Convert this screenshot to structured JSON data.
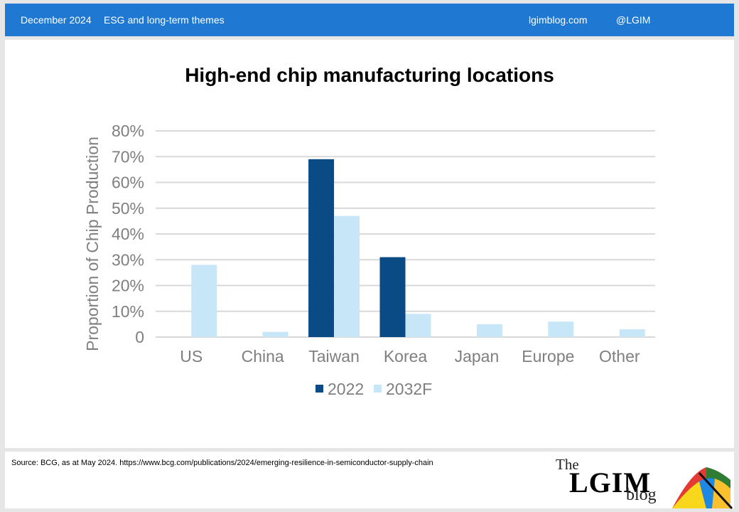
{
  "header": {
    "date": "December 2024",
    "theme": "ESG and long-term themes",
    "site": "lgimblog.com",
    "handle": "@LGIM"
  },
  "footer": {
    "source": "Source: BCG, as at May 2024. https://www.bcg.com/publications/2024/emerging-resilience-in-semiconductor-supply-chain",
    "logo_the": "The",
    "logo_name": "LGIM",
    "logo_blog": "blog"
  },
  "colors": {
    "header_bg": "#1f78d1",
    "series_2022": "#0a4b85",
    "series_2032F": "#c7e6f7",
    "gridline": "#d9d9d9",
    "axis_text": "#7f7f7f"
  },
  "chart_data": {
    "type": "bar",
    "title": "High-end chip manufacturing locations",
    "ylabel": "Proportion of Chip Production",
    "xlabel": "",
    "categories": [
      "US",
      "China",
      "Taiwan",
      "Korea",
      "Japan",
      "Europe",
      "Other"
    ],
    "series": [
      {
        "name": "2022",
        "values": [
          0,
          0,
          69,
          31,
          0,
          0,
          0
        ]
      },
      {
        "name": "2032F",
        "values": [
          28,
          2,
          47,
          9,
          5,
          6,
          3
        ]
      }
    ],
    "yticks": [
      "0",
      "10%",
      "20%",
      "30%",
      "40%",
      "50%",
      "60%",
      "70%",
      "80%"
    ],
    "ylim": [
      0,
      80
    ],
    "grid": true,
    "legend": "bottom"
  }
}
